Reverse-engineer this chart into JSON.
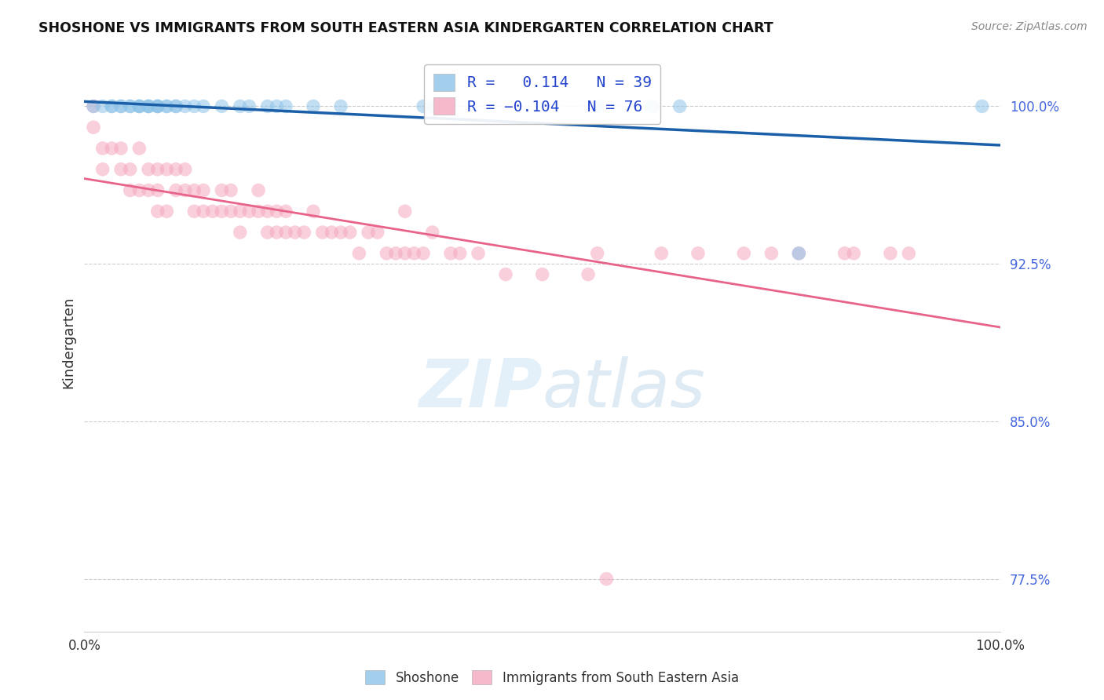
{
  "title": "SHOSHONE VS IMMIGRANTS FROM SOUTH EASTERN ASIA KINDERGARTEN CORRELATION CHART",
  "source": "Source: ZipAtlas.com",
  "ylabel": "Kindergarten",
  "legend_labels": [
    "Shoshone",
    "Immigrants from South Eastern Asia"
  ],
  "legend_r": [
    0.114,
    -0.104
  ],
  "legend_n": [
    39,
    76
  ],
  "blue_color": "#8ec4e8",
  "pink_color": "#f4a8be",
  "blue_line_color": "#1a5fa8",
  "pink_line_color": "#e8638a",
  "shoshone_x": [
    1,
    2,
    3,
    3,
    4,
    4,
    5,
    5,
    6,
    6,
    6,
    7,
    7,
    7,
    8,
    8,
    8,
    9,
    9,
    10,
    10,
    11,
    12,
    13,
    15,
    17,
    18,
    20,
    21,
    22,
    25,
    28,
    37,
    38,
    56,
    62,
    65,
    78,
    98
  ],
  "shoshone_y": [
    100,
    100,
    100,
    100,
    100,
    100,
    100,
    100,
    100,
    100,
    100,
    100,
    100,
    100,
    100,
    100,
    100,
    100,
    100,
    100,
    100,
    100,
    100,
    100,
    100,
    100,
    100,
    100,
    100,
    100,
    100,
    100,
    100,
    100,
    100,
    100,
    100,
    93,
    100
  ],
  "immigrants_x": [
    1,
    1,
    2,
    2,
    3,
    4,
    4,
    5,
    5,
    6,
    6,
    7,
    7,
    8,
    8,
    8,
    9,
    9,
    10,
    10,
    11,
    11,
    12,
    12,
    13,
    13,
    14,
    15,
    15,
    16,
    16,
    17,
    17,
    18,
    19,
    19,
    20,
    20,
    21,
    21,
    22,
    22,
    23,
    24,
    25,
    26,
    27,
    28,
    29,
    30,
    31,
    32,
    33,
    34,
    35,
    35,
    36,
    37,
    38,
    40,
    41,
    43,
    46,
    50,
    55,
    56,
    63,
    67,
    72,
    75,
    78,
    83,
    84,
    88,
    90,
    57
  ],
  "immigrants_y": [
    100,
    99,
    98,
    97,
    98,
    98,
    97,
    97,
    96,
    98,
    96,
    97,
    96,
    97,
    96,
    95,
    97,
    95,
    97,
    96,
    97,
    96,
    96,
    95,
    96,
    95,
    95,
    96,
    95,
    96,
    95,
    95,
    94,
    95,
    96,
    95,
    95,
    94,
    95,
    94,
    95,
    94,
    94,
    94,
    95,
    94,
    94,
    94,
    94,
    93,
    94,
    94,
    93,
    93,
    95,
    93,
    93,
    93,
    94,
    93,
    93,
    93,
    92,
    92,
    92,
    93,
    93,
    93,
    93,
    93,
    93,
    93,
    93,
    93,
    93,
    77.5
  ]
}
